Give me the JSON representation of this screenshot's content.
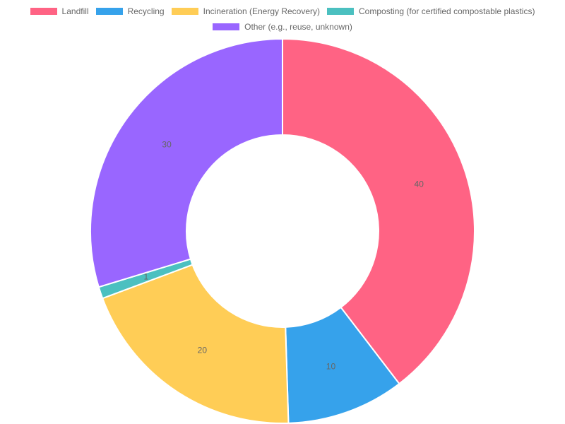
{
  "chart_data": {
    "type": "doughnut",
    "categories": [
      "Landfill",
      "Recycling",
      "Incineration (Energy Recovery)",
      "Composting (for certified compostable plastics)",
      "Other (e.g., reuse, unknown)"
    ],
    "values": [
      40,
      10,
      20,
      1,
      30
    ],
    "colors": [
      "#ff6384",
      "#36a2eb",
      "#ffcd56",
      "#4bc0c0",
      "#9966ff"
    ],
    "legend_position": "top",
    "data_labels": true
  }
}
